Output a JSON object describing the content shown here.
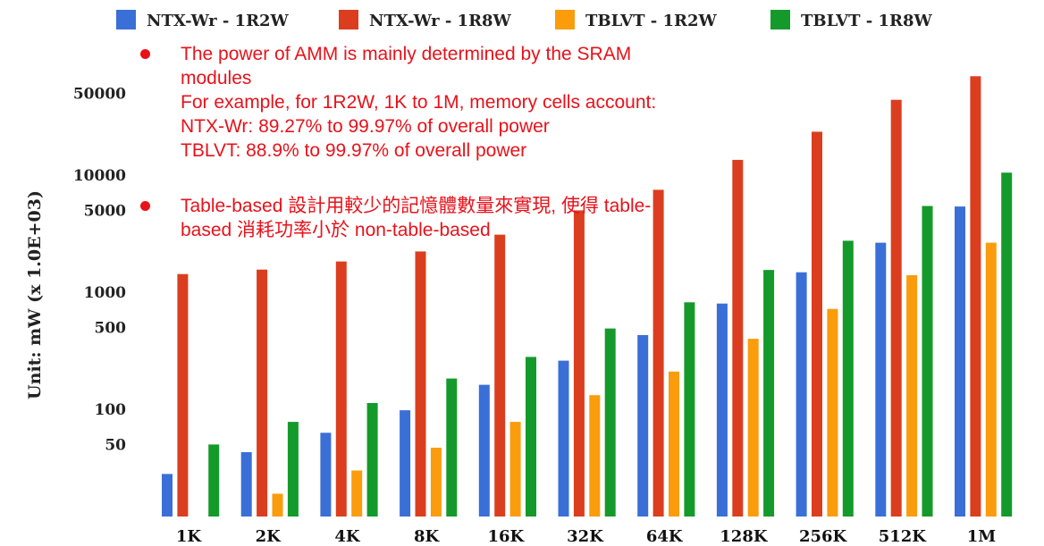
{
  "chart_data": {
    "type": "bar",
    "ylabel": "Unit: mW (x 1.0E+03)",
    "yscale": "log",
    "ylim": [
      25,
      80000
    ],
    "yticks": [
      50,
      100,
      500,
      1000,
      5000,
      10000,
      50000
    ],
    "ytick_labels": [
      "50",
      "100",
      "500",
      "1000",
      "5000",
      "10000",
      "50000"
    ],
    "categories": [
      "1K",
      "2K",
      "4K",
      "8K",
      "16K",
      "32K",
      "64K",
      "128K",
      "256K",
      "512K",
      "1M"
    ],
    "legend_position": "top",
    "series": [
      {
        "name": "NTX-Wr - 1R2W",
        "color": "#3a6fd8",
        "values": [
          28,
          43,
          63,
          98,
          162,
          260,
          430,
          800,
          1480,
          2650,
          5400
        ]
      },
      {
        "name": "NTX-Wr - 1R8W",
        "color": "#db3e1f",
        "values": [
          1430,
          1560,
          1830,
          2230,
          3100,
          5000,
          7500,
          13500,
          23500,
          44000,
          70000
        ]
      },
      {
        "name": "TBLVT - 1R2W",
        "color": "#fa9c0c",
        "values": [
          null,
          19,
          30,
          47,
          78,
          132,
          210,
          400,
          720,
          1400,
          2650
        ]
      },
      {
        "name": "TBLVT - 1R8W",
        "color": "#149a2a",
        "values": [
          50,
          78,
          113,
          183,
          280,
          490,
          820,
          1550,
          2750,
          5450,
          10500
        ]
      }
    ]
  },
  "annotations": {
    "bullet1_lines": [
      "The power of AMM is mainly determined by the SRAM",
      "modules",
      "For example, for 1R2W, 1K to 1M, memory cells account:",
      "NTX-Wr: 89.27% to 99.97% of overall power",
      "TBLVT: 88.9% to 99.97% of overall power"
    ],
    "bullet2_lines": [
      "Table-based 設計用較少的記憶體數量來實現, 使得 table-",
      "based 消耗功率小於 non-table-based"
    ]
  }
}
